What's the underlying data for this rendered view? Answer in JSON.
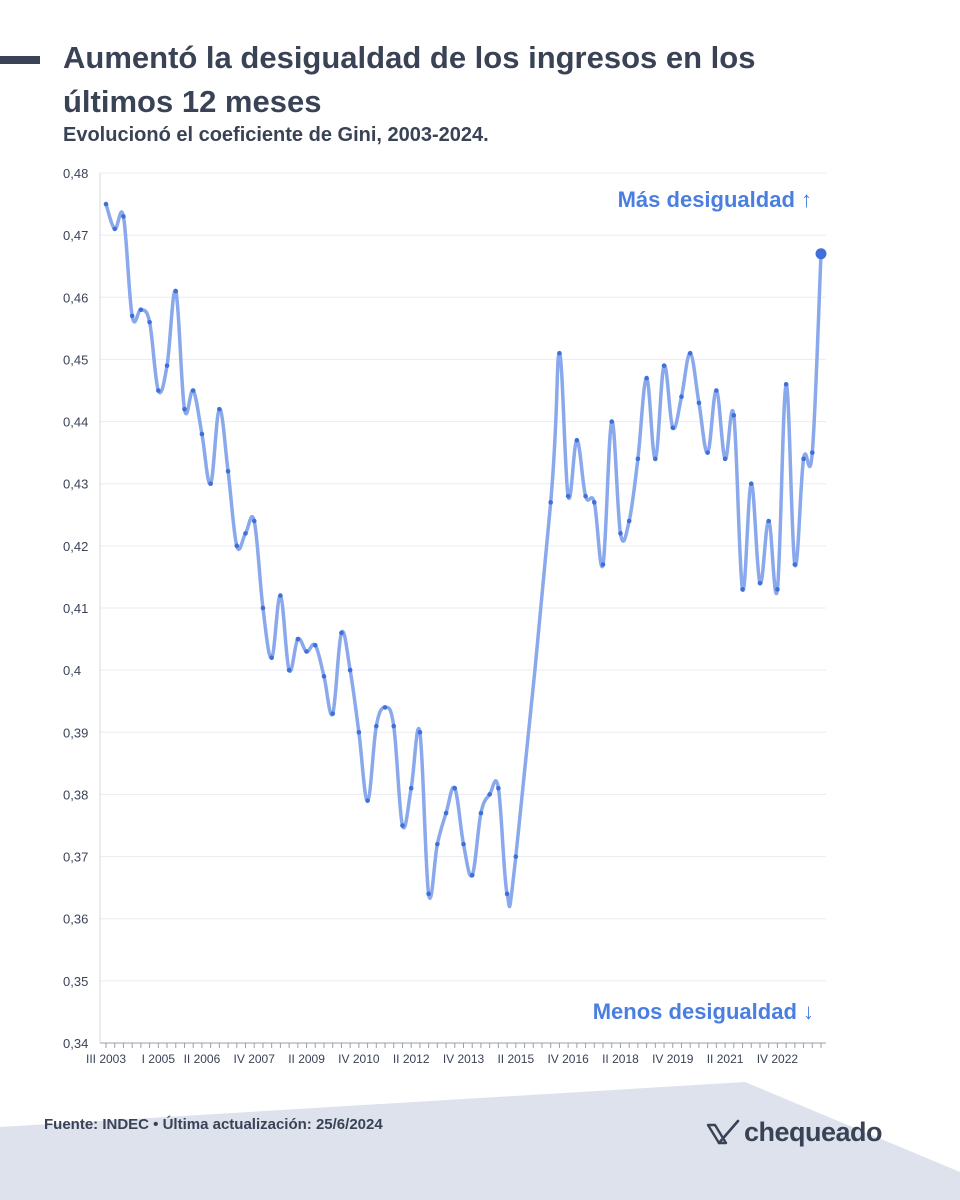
{
  "title": "Aumentó la desigualdad de los ingresos en los últimos 12 meses",
  "subtitle": "Evolucionó el coeficiente de Gini, 2003-2024.",
  "annotations": {
    "top": "Más desigualdad ↑",
    "bottom": "Menos desigualdad ↓"
  },
  "footer": {
    "source": "Fuente: INDEC • Última actualización: 25/6/2024",
    "brand": "chequeado"
  },
  "colors": {
    "line": "#8aa8ec",
    "point": "#3f6fd8",
    "accent": "#4a7ee0",
    "text": "#3a4356",
    "footer_band": "#dde2ec"
  },
  "chart_data": {
    "type": "line",
    "ylim": [
      0.34,
      0.48
    ],
    "y_ticks": [
      "0,34",
      "0,35",
      "0,36",
      "0,37",
      "0,38",
      "0,39",
      "0,4",
      "0,41",
      "0,42",
      "0,43",
      "0,44",
      "0,45",
      "0,46",
      "0,47",
      "0,48"
    ],
    "x_tick_labels": [
      "III 2003",
      "I 2005",
      "II 2006",
      "IV 2007",
      "II 2009",
      "IV 2010",
      "II 2012",
      "IV 2013",
      "II 2015",
      "IV 2016",
      "II 2018",
      "IV 2019",
      "II 2021",
      "IV 2022"
    ],
    "x_tick_indices": [
      0,
      6,
      11,
      17,
      23,
      29,
      35,
      41,
      47,
      53,
      59,
      65,
      71,
      77
    ],
    "series": [
      {
        "values": [
          0.475,
          0.471,
          0.473,
          0.457,
          0.458,
          0.456,
          0.445,
          0.449,
          0.461,
          0.442,
          0.445,
          0.438,
          0.43,
          0.442,
          0.432,
          0.42,
          0.422,
          0.424,
          0.41,
          0.402,
          0.412,
          0.4,
          0.405,
          0.403,
          0.404,
          0.399,
          0.393,
          0.406,
          0.4,
          0.39,
          0.379,
          0.391,
          0.394,
          0.391,
          0.375,
          0.381,
          0.39,
          0.364,
          0.372,
          0.377,
          0.381,
          0.372,
          0.367,
          0.377,
          0.38,
          0.381,
          0.364,
          0.37,
          null,
          null,
          null,
          0.427,
          0.451,
          0.428,
          0.437,
          0.428,
          0.427,
          0.417,
          0.44,
          0.422,
          0.424,
          0.434,
          0.447,
          0.434,
          0.449,
          0.439,
          0.444,
          0.451,
          0.443,
          0.435,
          0.445,
          0.434,
          0.441,
          0.413,
          0.43,
          0.414,
          0.424,
          0.413,
          0.446,
          0.417,
          0.434,
          0.435,
          0.467
        ]
      }
    ],
    "grid": true,
    "legend": "none",
    "last_point_highlighted": true
  }
}
